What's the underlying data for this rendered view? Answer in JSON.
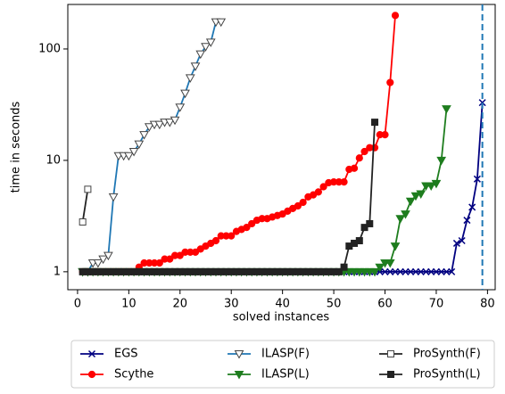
{
  "chart_data": {
    "type": "line",
    "xlabel": "solved instances",
    "ylabel": "time in seconds",
    "x": [
      1,
      2,
      3,
      4,
      5,
      6,
      7,
      8,
      9,
      10,
      11,
      12,
      13,
      14,
      15,
      16,
      17,
      18,
      19,
      20,
      21,
      22,
      23,
      24,
      25,
      26,
      27,
      28,
      29,
      30,
      31,
      32,
      33,
      34,
      35,
      36,
      37,
      38,
      39,
      40,
      41,
      42,
      43,
      44,
      45,
      46,
      47,
      48,
      49,
      50,
      51,
      52,
      53,
      54,
      55,
      56,
      57,
      58,
      59,
      60,
      61,
      62,
      63,
      64,
      65,
      66,
      67,
      68,
      69,
      70,
      71,
      72,
      73,
      74,
      75,
      76,
      77,
      78,
      79
    ],
    "xlim": [
      -1.9,
      81.5
    ],
    "xticks": [
      0,
      10,
      20,
      30,
      40,
      50,
      60,
      70,
      80
    ],
    "ylim": [
      0.69,
      251
    ],
    "yticks": [
      1,
      10,
      100
    ],
    "log_y": true,
    "reference_line": {
      "x": 79,
      "color": "#1f77b4",
      "style": "dashed"
    },
    "legend": "below",
    "series": [
      {
        "name": "EGS",
        "color": "#000080",
        "marker": "x",
        "hollow": false,
        "values": [
          1,
          1,
          1,
          1,
          1,
          1,
          1,
          1,
          1,
          1,
          1,
          1,
          1,
          1,
          1,
          1,
          1,
          1,
          1,
          1,
          1,
          1,
          1,
          1,
          1,
          1,
          1,
          1,
          1,
          1,
          1,
          1,
          1,
          1,
          1,
          1,
          1,
          1,
          1,
          1,
          1,
          1,
          1,
          1,
          1,
          1,
          1,
          1,
          1,
          1,
          1,
          1,
          1,
          1,
          1,
          1,
          1,
          1,
          1,
          1,
          1,
          1,
          1,
          1,
          1,
          1,
          1,
          1,
          1,
          1,
          1,
          1,
          1,
          1.8,
          1.9,
          2.9,
          3.8,
          6.8,
          33
        ]
      },
      {
        "name": "Scythe",
        "color": "#ff0000",
        "marker": "o",
        "hollow": false,
        "values": [
          1,
          1,
          1,
          1,
          1,
          1,
          1,
          1,
          1,
          1,
          1,
          1.1,
          1.2,
          1.2,
          1.2,
          1.2,
          1.3,
          1.3,
          1.4,
          1.4,
          1.5,
          1.5,
          1.5,
          1.6,
          1.7,
          1.8,
          1.9,
          2.1,
          2.1,
          2.1,
          2.3,
          2.4,
          2.5,
          2.7,
          2.9,
          3.0,
          3.0,
          3.1,
          3.2,
          3.3,
          3.5,
          3.7,
          3.9,
          4.2,
          4.7,
          4.9,
          5.2,
          5.8,
          6.3,
          6.4,
          6.4,
          6.4,
          8.3,
          8.5,
          10.5,
          12,
          13,
          13,
          17,
          17,
          50,
          200,
          null,
          null,
          null,
          null,
          null,
          null,
          null,
          null,
          null,
          null,
          null,
          null,
          null,
          null,
          null,
          null,
          null
        ]
      },
      {
        "name": "ILASP(F)",
        "color": "#1f77b4",
        "marker": "v",
        "hollow": true,
        "values": [
          1,
          1,
          1.2,
          1.2,
          1.3,
          1.4,
          4.7,
          11,
          11,
          11,
          12,
          14,
          17,
          20,
          21,
          21,
          22,
          22,
          23,
          30,
          40,
          55,
          70,
          90,
          105,
          115,
          175,
          175,
          null,
          null,
          null,
          null,
          null,
          null,
          null,
          null,
          null,
          null,
          null,
          null,
          null,
          null,
          null,
          null,
          null,
          null,
          null,
          null,
          null,
          null,
          null,
          null,
          null,
          null,
          null,
          null,
          null,
          null,
          null,
          null,
          null,
          null,
          null,
          null,
          null,
          null,
          null,
          null,
          null,
          null,
          null,
          null,
          null,
          null,
          null,
          null,
          null,
          null,
          null
        ]
      },
      {
        "name": "ILASP(L)",
        "color": "#1e7d1e",
        "marker": "v",
        "hollow": false,
        "values": [
          1,
          1,
          1,
          1,
          1,
          1,
          1,
          1,
          1,
          1,
          1,
          1,
          1,
          1,
          1,
          1,
          1,
          1,
          1,
          1,
          1,
          1,
          1,
          1,
          1,
          1,
          1,
          1,
          1,
          1,
          1,
          1,
          1,
          1,
          1,
          1,
          1,
          1,
          1,
          1,
          1,
          1,
          1,
          1,
          1,
          1,
          1,
          1,
          1,
          1,
          1,
          1,
          1,
          1,
          1,
          1,
          1,
          1,
          1.1,
          1.2,
          1.2,
          1.7,
          3,
          3.3,
          4.3,
          4.8,
          5,
          5.9,
          5.9,
          6.2,
          10,
          29,
          null,
          null,
          null,
          null,
          null,
          null,
          null
        ]
      },
      {
        "name": "ProSynth(F)",
        "color": "#222222",
        "marker": "s",
        "hollow": true,
        "values": [
          2.8,
          5.5,
          null,
          null,
          null,
          null,
          null,
          null,
          null,
          null,
          null,
          null,
          null,
          null,
          null,
          null,
          null,
          null,
          null,
          null,
          null,
          null,
          null,
          null,
          null,
          null,
          null,
          null,
          null,
          null,
          null,
          null,
          null,
          null,
          null,
          null,
          null,
          null,
          null,
          null,
          null,
          null,
          null,
          null,
          null,
          null,
          null,
          null,
          null,
          null,
          null,
          null,
          null,
          null,
          null,
          null,
          null,
          null,
          null,
          null,
          null,
          null,
          null,
          null,
          null,
          null,
          null,
          null,
          null,
          null,
          null,
          null,
          null,
          null,
          null,
          null,
          null,
          null,
          null
        ]
      },
      {
        "name": "ProSynth(L)",
        "color": "#222222",
        "marker": "s",
        "hollow": false,
        "values": [
          1,
          1,
          1,
          1,
          1,
          1,
          1,
          1,
          1,
          1,
          1,
          1,
          1,
          1,
          1,
          1,
          1,
          1,
          1,
          1,
          1,
          1,
          1,
          1,
          1,
          1,
          1,
          1,
          1,
          1,
          1,
          1,
          1,
          1,
          1,
          1,
          1,
          1,
          1,
          1,
          1,
          1,
          1,
          1,
          1,
          1,
          1,
          1,
          1,
          1,
          1,
          1.1,
          1.7,
          1.8,
          1.9,
          2.5,
          2.7,
          22,
          null,
          null,
          null,
          null,
          null,
          null,
          null,
          null,
          null,
          null,
          null,
          null,
          null,
          null,
          null,
          null,
          null,
          null,
          null,
          null,
          null
        ]
      }
    ]
  }
}
